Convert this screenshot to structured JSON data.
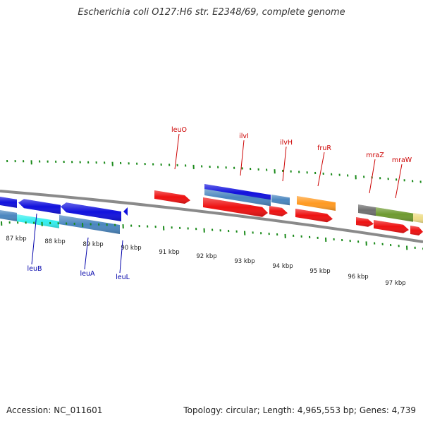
{
  "title": "Escherichia coli O127:H6 str. E2348/69, complete genome",
  "footer": {
    "accession": "Accession: NC_011601",
    "summary": "Topology: circular; Length: 4,965,553 bp; Genes: 4,739"
  },
  "ticks": [
    "87 kbp",
    "88 kbp",
    "89 kbp",
    "90 kbp",
    "91 kbp",
    "92 kbp",
    "93 kbp",
    "94 kbp",
    "95 kbp",
    "96 kbp",
    "97 kbp"
  ],
  "genes_below": [
    "leuB",
    "leuA",
    "leuL"
  ],
  "genes_above": [
    "leuO",
    "ilvI",
    "ilvH",
    "fruR",
    "mraZ",
    "mraW"
  ],
  "colors": {
    "forward": "#ee1111",
    "reverse": "#1111dd",
    "feature": "#4a86bf",
    "feature_light": "#33eeee",
    "orange": "#ff9a22",
    "olive": "#6e9a30",
    "grey": "#707070",
    "pale": "#eedd88",
    "backbone": "#8a8a8a",
    "tick": "#1a8a1a",
    "label_above": "#cc0000",
    "label_below": "#0000aa"
  }
}
